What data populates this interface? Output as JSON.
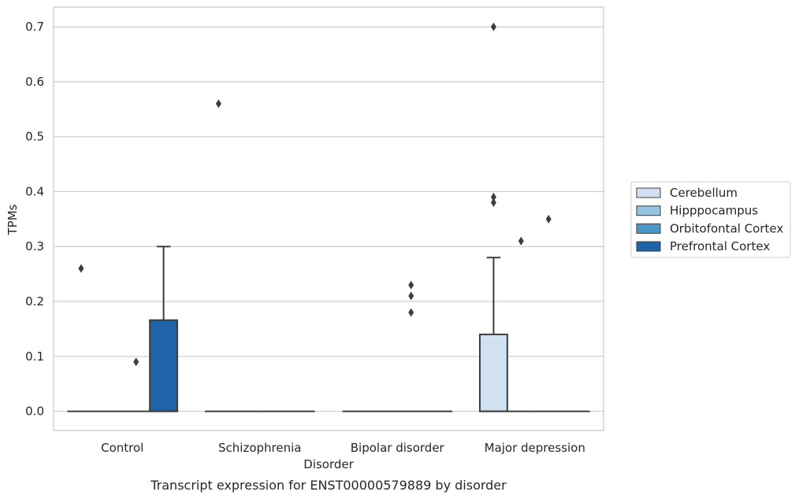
{
  "chart_data": {
    "type": "box",
    "title": "",
    "xlabel": "Disorder",
    "ylabel": "TPMs",
    "caption": "Transcript expression for ENST00000579889 by disorder",
    "ylim": [
      -0.035,
      0.736
    ],
    "yticks": [
      "0.0",
      "0.1",
      "0.2",
      "0.3",
      "0.4",
      "0.5",
      "0.6",
      "0.7"
    ],
    "ytick_values": [
      0,
      0.1,
      0.2,
      0.3,
      0.4,
      0.5,
      0.6,
      0.7
    ],
    "grid": "horizontal",
    "legend_position": "right",
    "categories": [
      "Control",
      "Schizophrenia",
      "Bipolar disorder",
      "Major depression"
    ],
    "series": [
      {
        "name": "Cerebellum",
        "color": "#d0e1f2"
      },
      {
        "name": "Hipppocampus",
        "color": "#94c4df"
      },
      {
        "name": "Orbitofontal Cortex",
        "color": "#4a98c9"
      },
      {
        "name": "Prefrontal Cortex",
        "color": "#2163a9"
      }
    ],
    "boxes": [
      {
        "category": 0,
        "series": 0,
        "q1": 0,
        "median": 0,
        "q3": 0,
        "whisker_low": 0,
        "whisker_high": 0,
        "outliers": [
          0.26
        ]
      },
      {
        "category": 0,
        "series": 1,
        "q1": 0,
        "median": 0,
        "q3": 0,
        "whisker_low": 0,
        "whisker_high": 0,
        "outliers": []
      },
      {
        "category": 0,
        "series": 2,
        "q1": 0,
        "median": 0,
        "q3": 0,
        "whisker_low": 0,
        "whisker_high": 0,
        "outliers": [
          0.09
        ]
      },
      {
        "category": 0,
        "series": 3,
        "q1": 0,
        "median": 0,
        "q3": 0.166,
        "whisker_low": 0,
        "whisker_high": 0.3,
        "outliers": []
      },
      {
        "category": 1,
        "series": 0,
        "q1": 0,
        "median": 0,
        "q3": 0,
        "whisker_low": 0,
        "whisker_high": 0,
        "outliers": [
          0.56
        ]
      },
      {
        "category": 1,
        "series": 1,
        "q1": 0,
        "median": 0,
        "q3": 0,
        "whisker_low": 0,
        "whisker_high": 0,
        "outliers": []
      },
      {
        "category": 1,
        "series": 2,
        "q1": 0,
        "median": 0,
        "q3": 0,
        "whisker_low": 0,
        "whisker_high": 0,
        "outliers": []
      },
      {
        "category": 1,
        "series": 3,
        "q1": 0,
        "median": 0,
        "q3": 0,
        "whisker_low": 0,
        "whisker_high": 0,
        "outliers": []
      },
      {
        "category": 2,
        "series": 0,
        "q1": 0,
        "median": 0,
        "q3": 0,
        "whisker_low": 0,
        "whisker_high": 0,
        "outliers": []
      },
      {
        "category": 2,
        "series": 1,
        "q1": 0,
        "median": 0,
        "q3": 0,
        "whisker_low": 0,
        "whisker_high": 0,
        "outliers": []
      },
      {
        "category": 2,
        "series": 2,
        "q1": 0,
        "median": 0,
        "q3": 0,
        "whisker_low": 0,
        "whisker_high": 0,
        "outliers": [
          0.23,
          0.21,
          0.18
        ]
      },
      {
        "category": 2,
        "series": 3,
        "q1": 0,
        "median": 0,
        "q3": 0,
        "whisker_low": 0,
        "whisker_high": 0,
        "outliers": []
      },
      {
        "category": 3,
        "series": 0,
        "q1": 0,
        "median": 0,
        "q3": 0.14,
        "whisker_low": 0,
        "whisker_high": 0.28,
        "outliers": [
          0.7,
          0.39,
          0.38
        ]
      },
      {
        "category": 3,
        "series": 1,
        "q1": 0,
        "median": 0,
        "q3": 0,
        "whisker_low": 0,
        "whisker_high": 0,
        "outliers": [
          0.31
        ]
      },
      {
        "category": 3,
        "series": 2,
        "q1": 0,
        "median": 0,
        "q3": 0,
        "whisker_low": 0,
        "whisker_high": 0,
        "outliers": [
          0.35
        ]
      },
      {
        "category": 3,
        "series": 3,
        "q1": 0,
        "median": 0,
        "q3": 0,
        "whisker_low": 0,
        "whisker_high": 0,
        "outliers": []
      }
    ]
  }
}
